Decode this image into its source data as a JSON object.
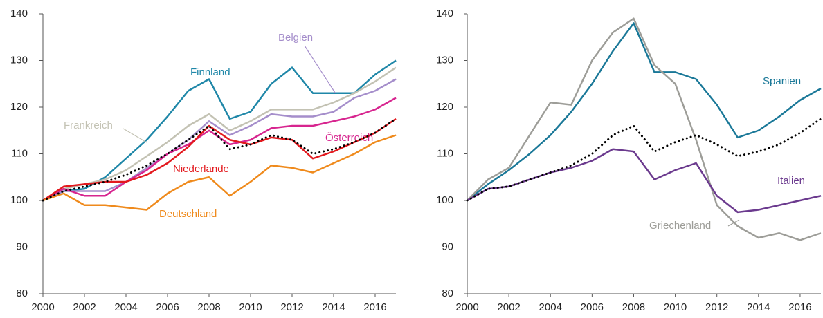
{
  "chart_data": [
    {
      "type": "line",
      "x": [
        2000,
        2001,
        2002,
        2003,
        2004,
        2005,
        2006,
        2007,
        2008,
        2009,
        2010,
        2011,
        2012,
        2013,
        2014,
        2015,
        2016,
        2017
      ],
      "xlim": [
        2000,
        2017
      ],
      "xticks": [
        2000,
        2002,
        2004,
        2006,
        2008,
        2010,
        2012,
        2014,
        2016
      ],
      "ylim": [
        80,
        140
      ],
      "yticks": [
        80,
        90,
        100,
        110,
        120,
        130,
        140
      ],
      "series": [
        {
          "name": "Finnland",
          "color": "#1f87a8",
          "values": [
            100,
            102,
            102.5,
            105,
            109,
            113,
            118,
            123.5,
            126,
            117.5,
            119,
            125,
            128.5,
            123,
            123,
            123,
            127,
            130
          ]
        },
        {
          "name": "Frankreich",
          "color": "#c3c2b3",
          "values": [
            100,
            102.5,
            103.5,
            104.5,
            106.5,
            109.5,
            112.5,
            116,
            118.5,
            115,
            117,
            119.5,
            119.5,
            119.5,
            121,
            123,
            125.5,
            128.5
          ]
        },
        {
          "name": "Belgien",
          "color": "#a58ecb",
          "values": [
            100,
            102,
            102,
            102,
            104,
            107,
            110,
            113,
            117,
            114,
            116,
            118.5,
            118,
            118,
            119,
            122,
            123.5,
            126
          ]
        },
        {
          "name": "Österreich",
          "color": "#d7258f",
          "values": [
            100,
            102.5,
            101,
            101,
            104,
            106.5,
            110,
            112,
            115,
            112,
            113,
            115.5,
            116,
            116,
            117,
            118,
            119.5,
            122
          ]
        },
        {
          "name": "Niederlande",
          "color": "#e3191e",
          "values": [
            100,
            103,
            103.5,
            104,
            104,
            105.5,
            108,
            111.5,
            116,
            113,
            112,
            113.5,
            113,
            109,
            110.5,
            112.5,
            114.5,
            117.5
          ]
        },
        {
          "name": "Deutschland",
          "color": "#ef8a1c",
          "values": [
            100,
            101.5,
            99,
            99,
            98.5,
            98,
            101.5,
            104,
            105,
            101,
            104,
            107.5,
            107,
            106,
            108,
            110,
            112.5,
            114
          ]
        },
        {
          "color": "#000000",
          "dash": "dotted",
          "values": [
            100,
            102,
            103,
            104,
            105.5,
            107.5,
            110,
            113,
            116,
            111,
            112,
            114,
            113,
            110,
            111,
            112.5,
            114.5,
            117.5
          ]
        }
      ]
    },
    {
      "type": "line",
      "x": [
        2000,
        2001,
        2002,
        2003,
        2004,
        2005,
        2006,
        2007,
        2008,
        2009,
        2010,
        2011,
        2012,
        2013,
        2014,
        2015,
        2016,
        2017
      ],
      "xlim": [
        2000,
        2017
      ],
      "xticks": [
        2000,
        2002,
        2004,
        2006,
        2008,
        2010,
        2012,
        2014,
        2016
      ],
      "ylim": [
        80,
        140
      ],
      "yticks": [
        80,
        90,
        100,
        110,
        120,
        130,
        140
      ],
      "series": [
        {
          "name": "Spanien",
          "color": "#1a7898",
          "values": [
            100,
            103.5,
            106.5,
            110,
            114,
            119,
            125,
            132,
            138,
            127.5,
            127.5,
            126,
            120.5,
            113.5,
            115,
            118,
            121.5,
            124
          ]
        },
        {
          "name": "Griechenland",
          "color": "#9d9d98",
          "values": [
            100,
            104.5,
            107,
            114,
            121,
            120.5,
            130,
            136,
            139,
            129,
            125,
            113,
            99,
            94.5,
            92,
            93,
            91.5,
            93
          ]
        },
        {
          "name": "Italien",
          "color": "#6b3a8e",
          "values": [
            100,
            102.5,
            103,
            104.5,
            106,
            107,
            108.5,
            111,
            110.5,
            104.5,
            106.5,
            108,
            101,
            97.5,
            98,
            99,
            100,
            101
          ]
        },
        {
          "color": "#000000",
          "dash": "dotted",
          "values": [
            100,
            102.5,
            103,
            104.5,
            106,
            107.5,
            110,
            114,
            116,
            110.5,
            112.5,
            114,
            112,
            109.5,
            110.5,
            112,
            114.5,
            117.5
          ]
        }
      ]
    }
  ]
}
